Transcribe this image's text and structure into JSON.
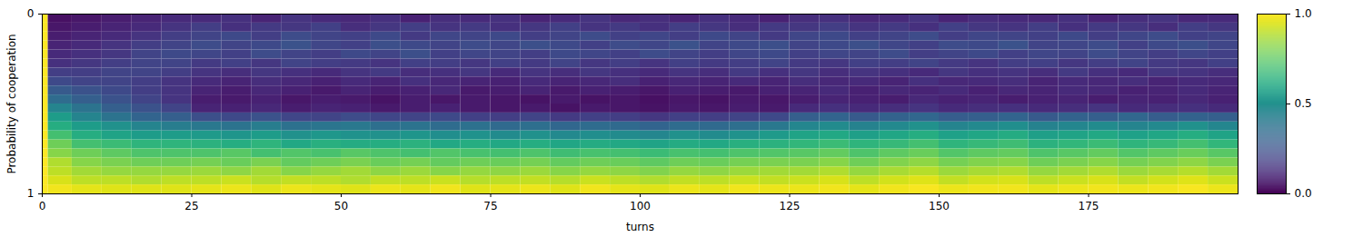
{
  "chart_data": {
    "type": "heatmap",
    "xlabel": "turns",
    "ylabel": "Probability of cooperation",
    "color": "viridis",
    "xlim": [
      0,
      200
    ],
    "xticks": [
      0,
      25,
      50,
      75,
      100,
      125,
      150,
      175
    ],
    "ylim": [
      0,
      1
    ],
    "yticks": [
      0,
      1
    ],
    "x_edges": [
      0,
      1,
      5,
      10,
      15,
      20,
      25,
      30,
      35,
      40,
      45,
      50,
      55,
      60,
      65,
      70,
      75,
      80,
      85,
      90,
      95,
      100,
      105,
      110,
      115,
      120,
      125,
      130,
      135,
      140,
      145,
      150,
      155,
      160,
      165,
      170,
      175,
      180,
      185,
      190,
      195,
      200
    ],
    "y_edges": [
      0,
      0.05,
      0.1,
      0.15,
      0.2,
      0.25,
      0.3,
      0.35,
      0.4,
      0.45,
      0.5,
      0.55,
      0.6,
      0.65,
      0.7,
      0.75,
      0.8,
      0.85,
      0.9,
      0.95,
      1
    ],
    "values": [
      [
        1,
        0.04,
        0.06,
        0.08,
        0.1,
        0.12,
        0.12,
        0.14,
        0.1,
        0.15,
        0.12,
        0.11,
        0.14,
        0.09,
        0.13,
        0.12,
        0.14,
        0.1,
        0.12,
        0.15,
        0.11,
        0.13,
        0.1,
        0.14,
        0.12,
        0.09,
        0.13,
        0.14,
        0.11,
        0.12,
        0.15,
        0.1,
        0.13,
        0.12,
        0.11,
        0.14,
        0.1,
        0.13,
        0.15,
        0.11,
        0.12
      ],
      [
        1,
        0.06,
        0.08,
        0.1,
        0.12,
        0.15,
        0.18,
        0.14,
        0.17,
        0.16,
        0.19,
        0.13,
        0.16,
        0.18,
        0.15,
        0.17,
        0.14,
        0.16,
        0.19,
        0.15,
        0.17,
        0.14,
        0.18,
        0.16,
        0.13,
        0.17,
        0.16,
        0.18,
        0.15,
        0.17,
        0.14,
        0.19,
        0.16,
        0.15,
        0.18,
        0.14,
        0.17,
        0.16,
        0.13,
        0.18,
        0.16
      ],
      [
        1,
        0.08,
        0.1,
        0.12,
        0.15,
        0.18,
        0.2,
        0.22,
        0.18,
        0.23,
        0.2,
        0.19,
        0.22,
        0.17,
        0.21,
        0.2,
        0.22,
        0.18,
        0.2,
        0.23,
        0.19,
        0.21,
        0.18,
        0.22,
        0.2,
        0.17,
        0.21,
        0.22,
        0.19,
        0.2,
        0.23,
        0.18,
        0.21,
        0.2,
        0.19,
        0.22,
        0.18,
        0.21,
        0.23,
        0.19,
        0.2
      ],
      [
        1,
        0.1,
        0.12,
        0.15,
        0.18,
        0.2,
        0.23,
        0.2,
        0.22,
        0.25,
        0.21,
        0.19,
        0.24,
        0.22,
        0.2,
        0.23,
        0.21,
        0.24,
        0.22,
        0.19,
        0.23,
        0.21,
        0.25,
        0.2,
        0.22,
        0.24,
        0.2,
        0.22,
        0.24,
        0.21,
        0.19,
        0.23,
        0.22,
        0.25,
        0.2,
        0.21,
        0.23,
        0.19,
        0.22,
        0.24,
        0.21
      ],
      [
        1,
        0.12,
        0.14,
        0.16,
        0.2,
        0.22,
        0.21,
        0.19,
        0.23,
        0.2,
        0.18,
        0.22,
        0.2,
        0.24,
        0.19,
        0.21,
        0.2,
        0.18,
        0.22,
        0.21,
        0.19,
        0.23,
        0.2,
        0.18,
        0.21,
        0.22,
        0.19,
        0.21,
        0.2,
        0.23,
        0.18,
        0.2,
        0.22,
        0.19,
        0.21,
        0.2,
        0.23,
        0.2,
        0.18,
        0.21,
        0.19
      ],
      [
        1,
        0.14,
        0.16,
        0.18,
        0.2,
        0.2,
        0.17,
        0.19,
        0.16,
        0.2,
        0.18,
        0.17,
        0.15,
        0.19,
        0.18,
        0.16,
        0.19,
        0.17,
        0.2,
        0.16,
        0.18,
        0.15,
        0.19,
        0.17,
        0.18,
        0.2,
        0.17,
        0.16,
        0.19,
        0.18,
        0.2,
        0.17,
        0.15,
        0.18,
        0.19,
        0.16,
        0.18,
        0.2,
        0.17,
        0.16,
        0.19
      ],
      [
        1,
        0.18,
        0.18,
        0.2,
        0.2,
        0.18,
        0.15,
        0.13,
        0.16,
        0.14,
        0.12,
        0.15,
        0.17,
        0.13,
        0.14,
        0.16,
        0.12,
        0.15,
        0.13,
        0.16,
        0.14,
        0.12,
        0.15,
        0.13,
        0.17,
        0.14,
        0.16,
        0.13,
        0.15,
        0.14,
        0.12,
        0.16,
        0.14,
        0.15,
        0.13,
        0.17,
        0.14,
        0.12,
        0.16,
        0.15,
        0.13
      ],
      [
        1,
        0.22,
        0.2,
        0.2,
        0.18,
        0.15,
        0.12,
        0.1,
        0.13,
        0.11,
        0.09,
        0.12,
        0.1,
        0.14,
        0.11,
        0.1,
        0.09,
        0.12,
        0.1,
        0.11,
        0.13,
        0.09,
        0.11,
        0.1,
        0.12,
        0.1,
        0.13,
        0.11,
        0.12,
        0.1,
        0.14,
        0.11,
        0.12,
        0.13,
        0.1,
        0.12,
        0.11,
        0.13,
        0.1,
        0.12,
        0.11
      ],
      [
        1,
        0.28,
        0.25,
        0.22,
        0.18,
        0.15,
        0.1,
        0.08,
        0.11,
        0.09,
        0.07,
        0.1,
        0.08,
        0.09,
        0.11,
        0.07,
        0.08,
        0.1,
        0.07,
        0.09,
        0.08,
        0.06,
        0.09,
        0.08,
        0.07,
        0.09,
        0.1,
        0.12,
        0.09,
        0.11,
        0.1,
        0.12,
        0.09,
        0.11,
        0.1,
        0.12,
        0.11,
        0.09,
        0.1,
        0.12,
        0.1
      ],
      [
        1,
        0.35,
        0.3,
        0.25,
        0.2,
        0.15,
        0.08,
        0.07,
        0.09,
        0.06,
        0.08,
        0.07,
        0.05,
        0.08,
        0.06,
        0.07,
        0.06,
        0.05,
        0.07,
        0.05,
        0.06,
        0.04,
        0.06,
        0.05,
        0.07,
        0.06,
        0.08,
        0.1,
        0.09,
        0.08,
        0.11,
        0.09,
        0.1,
        0.08,
        0.09,
        0.1,
        0.08,
        0.1,
        0.09,
        0.11,
        0.09
      ],
      [
        1,
        0.45,
        0.38,
        0.3,
        0.25,
        0.2,
        0.1,
        0.09,
        0.11,
        0.08,
        0.1,
        0.09,
        0.07,
        0.08,
        0.09,
        0.07,
        0.06,
        0.07,
        0.05,
        0.07,
        0.06,
        0.05,
        0.07,
        0.06,
        0.08,
        0.07,
        0.12,
        0.14,
        0.12,
        0.13,
        0.15,
        0.12,
        0.13,
        0.14,
        0.12,
        0.13,
        0.15,
        0.12,
        0.13,
        0.14,
        0.12
      ],
      [
        1,
        0.55,
        0.45,
        0.38,
        0.32,
        0.3,
        0.24,
        0.22,
        0.25,
        0.21,
        0.2,
        0.23,
        0.21,
        0.2,
        0.22,
        0.19,
        0.18,
        0.2,
        0.17,
        0.19,
        0.18,
        0.16,
        0.19,
        0.18,
        0.2,
        0.22,
        0.3,
        0.32,
        0.28,
        0.31,
        0.33,
        0.29,
        0.3,
        0.32,
        0.28,
        0.31,
        0.3,
        0.33,
        0.29,
        0.31,
        0.3
      ],
      [
        1,
        0.62,
        0.55,
        0.5,
        0.45,
        0.42,
        0.4,
        0.38,
        0.42,
        0.37,
        0.39,
        0.4,
        0.36,
        0.38,
        0.35,
        0.37,
        0.34,
        0.36,
        0.33,
        0.35,
        0.34,
        0.32,
        0.35,
        0.34,
        0.36,
        0.4,
        0.46,
        0.48,
        0.44,
        0.47,
        0.5,
        0.45,
        0.47,
        0.49,
        0.44,
        0.46,
        0.48,
        0.45,
        0.47,
        0.5,
        0.46
      ],
      [
        1,
        0.7,
        0.62,
        0.58,
        0.55,
        0.55,
        0.54,
        0.52,
        0.55,
        0.5,
        0.53,
        0.51,
        0.5,
        0.52,
        0.49,
        0.51,
        0.48,
        0.5,
        0.47,
        0.49,
        0.48,
        0.46,
        0.5,
        0.48,
        0.51,
        0.54,
        0.58,
        0.6,
        0.56,
        0.59,
        0.62,
        0.57,
        0.59,
        0.61,
        0.56,
        0.58,
        0.6,
        0.57,
        0.59,
        0.62,
        0.58
      ],
      [
        1,
        0.78,
        0.7,
        0.68,
        0.65,
        0.65,
        0.64,
        0.62,
        0.65,
        0.6,
        0.63,
        0.61,
        0.62,
        0.64,
        0.6,
        0.62,
        0.6,
        0.62,
        0.59,
        0.61,
        0.6,
        0.58,
        0.61,
        0.6,
        0.63,
        0.64,
        0.66,
        0.68,
        0.65,
        0.67,
        0.7,
        0.65,
        0.67,
        0.69,
        0.64,
        0.66,
        0.68,
        0.65,
        0.67,
        0.7,
        0.66
      ],
      [
        1,
        0.82,
        0.78,
        0.75,
        0.72,
        0.72,
        0.72,
        0.74,
        0.7,
        0.73,
        0.71,
        0.74,
        0.72,
        0.7,
        0.73,
        0.71,
        0.7,
        0.72,
        0.69,
        0.71,
        0.7,
        0.68,
        0.71,
        0.7,
        0.72,
        0.73,
        0.74,
        0.76,
        0.72,
        0.75,
        0.77,
        0.73,
        0.75,
        0.76,
        0.72,
        0.74,
        0.76,
        0.73,
        0.75,
        0.77,
        0.74
      ],
      [
        1,
        0.88,
        0.82,
        0.8,
        0.78,
        0.78,
        0.79,
        0.77,
        0.8,
        0.76,
        0.78,
        0.8,
        0.77,
        0.79,
        0.76,
        0.78,
        0.77,
        0.79,
        0.76,
        0.78,
        0.77,
        0.75,
        0.78,
        0.77,
        0.79,
        0.8,
        0.8,
        0.82,
        0.78,
        0.81,
        0.83,
        0.79,
        0.81,
        0.82,
        0.78,
        0.8,
        0.82,
        0.79,
        0.81,
        0.83,
        0.8
      ],
      [
        1,
        0.9,
        0.86,
        0.84,
        0.84,
        0.84,
        0.85,
        0.83,
        0.86,
        0.82,
        0.84,
        0.86,
        0.83,
        0.85,
        0.82,
        0.84,
        0.83,
        0.85,
        0.82,
        0.84,
        0.83,
        0.81,
        0.84,
        0.83,
        0.85,
        0.86,
        0.86,
        0.88,
        0.84,
        0.87,
        0.89,
        0.85,
        0.87,
        0.88,
        0.84,
        0.86,
        0.88,
        0.85,
        0.87,
        0.89,
        0.86
      ],
      [
        1,
        0.94,
        0.9,
        0.9,
        0.88,
        0.9,
        0.9,
        0.92,
        0.89,
        0.91,
        0.9,
        0.88,
        0.91,
        0.9,
        0.92,
        0.89,
        0.9,
        0.91,
        0.89,
        0.92,
        0.9,
        0.88,
        0.91,
        0.9,
        0.92,
        0.91,
        0.92,
        0.94,
        0.9,
        0.93,
        0.95,
        0.91,
        0.93,
        0.94,
        0.9,
        0.92,
        0.94,
        0.91,
        0.93,
        0.95,
        0.92
      ],
      [
        1,
        0.98,
        0.96,
        0.95,
        0.95,
        0.95,
        0.96,
        0.97,
        0.95,
        0.97,
        0.96,
        0.95,
        0.97,
        0.96,
        0.98,
        0.95,
        0.96,
        0.97,
        0.95,
        0.98,
        0.96,
        0.95,
        0.97,
        0.96,
        0.98,
        0.97,
        0.97,
        0.98,
        0.96,
        0.98,
        0.99,
        0.97,
        0.98,
        0.98,
        0.96,
        0.97,
        0.98,
        0.97,
        0.98,
        0.99,
        0.97
      ]
    ],
    "colorbar": {
      "range": [
        0,
        1
      ],
      "ticks": [
        {
          "value": 0,
          "label": "0.0"
        },
        {
          "value": 0.5,
          "label": "0.5"
        },
        {
          "value": 1,
          "label": "1.0"
        }
      ]
    }
  }
}
